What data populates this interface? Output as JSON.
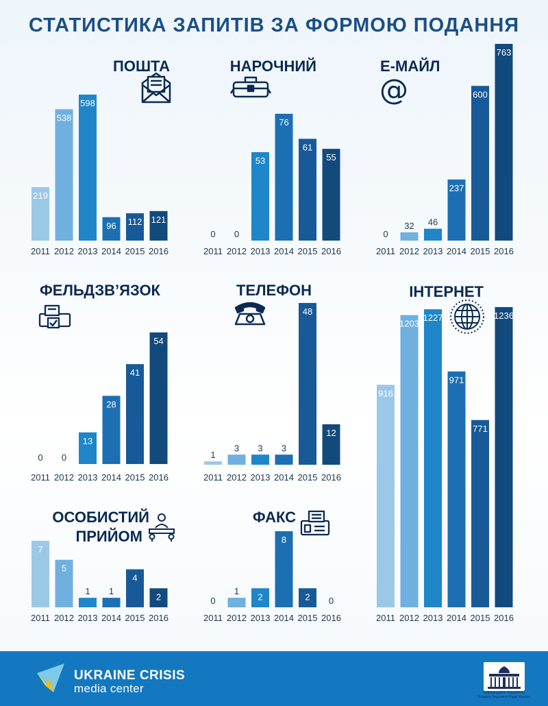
{
  "title": "СТАТИСТИКА ЗАПИТІВ ЗА ФОРМОЮ ПОДАННЯ",
  "colors": {
    "bars": [
      "#9cc8e8",
      "#6fb0df",
      "#1e86c9",
      "#1d6fb3",
      "#185a98",
      "#134a7c"
    ],
    "title": "#1b4f86",
    "footer": "#1378c0"
  },
  "chart_data": [
    {
      "type": "bar",
      "title": "ПОШТА",
      "icon": "envelope-icon",
      "categories": [
        "2011",
        "2012",
        "2013",
        "2014",
        "2015",
        "2016"
      ],
      "values": [
        219,
        538,
        598,
        96,
        112,
        121
      ],
      "ylim": [
        0,
        598
      ]
    },
    {
      "type": "bar",
      "title": "НАРОЧНИЙ",
      "icon": "briefcase-icon",
      "categories": [
        "2011",
        "2012",
        "2013",
        "2014",
        "2015",
        "2016"
      ],
      "values": [
        0,
        0,
        53,
        76,
        61,
        55
      ],
      "ylim": [
        0,
        76
      ]
    },
    {
      "type": "bar",
      "title": "Е-МАЙЛ",
      "icon": "at-sign-icon",
      "categories": [
        "2011",
        "2012",
        "2013",
        "2014",
        "2015",
        "2016"
      ],
      "values": [
        0,
        32,
        46,
        237,
        600,
        763
      ],
      "ylim": [
        0,
        763
      ]
    },
    {
      "type": "bar",
      "title": "ФЕЛЬДЗВ’ЯЗОК",
      "icon": "fax-printer-icon",
      "categories": [
        "2011",
        "2012",
        "2013",
        "2014",
        "2015",
        "2016"
      ],
      "values": [
        0,
        0,
        13,
        28,
        41,
        54
      ],
      "ylim": [
        0,
        54
      ]
    },
    {
      "type": "bar",
      "title": "ТЕЛЕФОН",
      "icon": "telephone-icon",
      "categories": [
        "2011",
        "2012",
        "2013",
        "2014",
        "2015",
        "2016"
      ],
      "values": [
        1,
        3,
        3,
        3,
        48,
        12
      ],
      "ylim": [
        0,
        48
      ]
    },
    {
      "type": "bar",
      "title": "ІНТЕРНЕТ",
      "icon": "globe-icon",
      "categories": [
        "2011",
        "2012",
        "2013",
        "2014",
        "2015",
        "2016"
      ],
      "values": [
        916,
        1203,
        1227,
        971,
        771,
        1236
      ],
      "ylim": [
        0,
        1236
      ]
    },
    {
      "type": "bar",
      "title": "ОСОБИСТИЙ ПРИЙОМ",
      "icon": "reception-people-icon",
      "categories": [
        "2011",
        "2012",
        "2013",
        "2014",
        "2015",
        "2016"
      ],
      "values": [
        7,
        5,
        1,
        1,
        4,
        2
      ],
      "ylim": [
        0,
        7
      ]
    },
    {
      "type": "bar",
      "title": "ФАКС",
      "icon": "fax-machine-icon",
      "categories": [
        "2011",
        "2012",
        "2013",
        "2014",
        "2015",
        "2016"
      ],
      "values": [
        0,
        1,
        2,
        8,
        2,
        0
      ],
      "ylim": [
        0,
        8
      ]
    }
  ],
  "footer": {
    "brand_title": "UKRAINE CRISIS",
    "brand_subtitle": "media center",
    "agency_text": "Інформаційне Управління Апарату Верховної Ради України"
  }
}
